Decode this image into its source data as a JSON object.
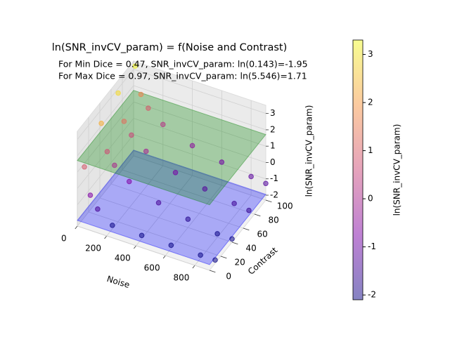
{
  "chart_data": {
    "type": "scatter3d",
    "title": "ln(SNR_invCV_param) = f(Noise and Contrast)",
    "annotations": [
      {
        "text": "For Min Dice = 0.47, SNR_invCV_param: ln(0.143)=-1.95",
        "color": "#0000ff"
      },
      {
        "text": "For Max Dice = 0.97, SNR_invCV_param: ln(5.546)=1.71",
        "color": "#008000"
      }
    ],
    "xlabel": "Noise",
    "ylabel": "Contrast",
    "zlabel": "ln(SNR_invCV_param)",
    "xlim": [
      0,
      900
    ],
    "ylim": [
      0,
      100
    ],
    "zlim": [
      -2.3,
      3.5
    ],
    "xticks": [
      0,
      200,
      400,
      600,
      800
    ],
    "yticks": [
      0,
      20,
      40,
      60,
      80,
      100
    ],
    "zticks": [
      -2,
      -1,
      0,
      1,
      2,
      3
    ],
    "x": [
      10,
      10,
      10,
      10,
      50,
      50,
      50,
      50,
      100,
      100,
      100,
      100,
      200,
      200,
      200,
      200,
      400,
      400,
      400,
      400,
      600,
      600,
      600,
      600,
      800,
      800,
      800,
      800,
      900,
      900,
      900,
      900
    ],
    "y": [
      10,
      40,
      70,
      100,
      10,
      40,
      70,
      100,
      10,
      40,
      70,
      100,
      10,
      40,
      70,
      100,
      10,
      40,
      70,
      100,
      10,
      40,
      70,
      100,
      10,
      40,
      70,
      100,
      10,
      40,
      70,
      100
    ],
    "z": [
      0.92,
      2.3,
      2.86,
      3.22,
      -0.69,
      0.69,
      1.25,
      1.61,
      -1.39,
      0,
      0.56,
      0.92,
      -2.08,
      -0.69,
      -0.13,
      0.22,
      -2.1,
      -1.39,
      -0.83,
      -0.47,
      -2.1,
      -1.79,
      -1.23,
      -0.88,
      -2.1,
      -2.08,
      -1.52,
      -1.16,
      -2.1,
      -2.1,
      -1.64,
      -1.28
    ],
    "planes": [
      {
        "z": -1.95,
        "color": "#0000ff"
      },
      {
        "z": 1.71,
        "color": "#008000"
      }
    ],
    "colormap": [
      "#0d0887",
      "#7e03a8",
      "#cc4778",
      "#f89540",
      "#f0f921"
    ],
    "clim": [
      -2.1,
      3.3
    ],
    "colorbar": {
      "label": "ln(SNR_invCV_param)",
      "ticks": [
        -2,
        -1,
        0,
        1,
        2,
        3
      ]
    },
    "grid": true
  }
}
